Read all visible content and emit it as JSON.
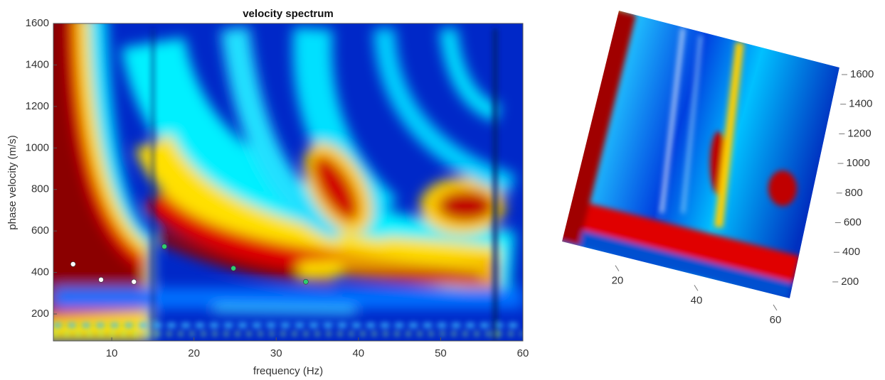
{
  "chart_data": [
    {
      "type": "heatmap",
      "title": "velocity spectrum",
      "x_label": "frequency (Hz)",
      "y_label": "phase velocity (m/s)",
      "xlim": [
        2.9,
        60
      ],
      "ylim": [
        70,
        1600
      ],
      "xticks": [
        10,
        20,
        30,
        40,
        50,
        60
      ],
      "yticks": [
        200,
        400,
        600,
        800,
        1000,
        1200,
        1400,
        1600
      ],
      "series": [
        {
          "color": "#ffffff",
          "x": [
            5.3,
            8.7,
            12.7
          ],
          "values": [
            440,
            365,
            355
          ]
        },
        {
          "color": "#2ecc71",
          "x": [
            16.4,
            24.8,
            33.6
          ],
          "values": [
            525,
            420,
            355
          ]
        }
      ]
    },
    {
      "type": "surface",
      "xlim": [
        2.9,
        60
      ],
      "zlim": [
        70,
        1600
      ],
      "xticks": [
        20,
        40,
        60
      ],
      "zticks": [
        200,
        400,
        600,
        800,
        1000,
        1200,
        1400,
        1600
      ]
    }
  ]
}
